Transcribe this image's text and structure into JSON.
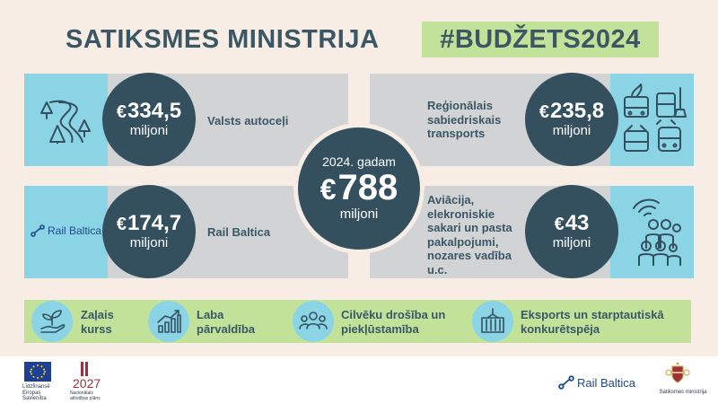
{
  "header": {
    "title": "SATIKSMES MINISTRIJA",
    "hashtag": "#BUDŽETS2024"
  },
  "total": {
    "year_label": "2024. gadam",
    "currency": "€",
    "amount": "788",
    "unit": "miljoni"
  },
  "items": [
    {
      "currency": "€",
      "amount": "334,5",
      "unit": "miljoni",
      "label": "Valsts autoceļi",
      "icon": "road-trees-icon"
    },
    {
      "currency": "€",
      "amount": "235,8",
      "unit": "miljoni",
      "label": "Reģionālais sabiedriskais transports",
      "icon": "public-transport-icon"
    },
    {
      "currency": "€",
      "amount": "174,7",
      "unit": "miljoni",
      "label": "Rail Baltica",
      "icon": "rail-baltica-logo",
      "logo_text": "Rail Baltica"
    },
    {
      "currency": "€",
      "amount": "43",
      "unit": "miljoni",
      "label": "Aviācija, elekroniskie sakari un pasta pakalpojumi, nozares vadība u.c.",
      "icon": "people-wifi-icon"
    }
  ],
  "priorities": [
    {
      "label": "Zaļais kurss",
      "icon": "sprout-hand-icon"
    },
    {
      "label": "Laba pārvaldība",
      "icon": "growth-chart-icon"
    },
    {
      "label": "Cilvēku drošība un piekļūstamība",
      "icon": "people-group-icon"
    },
    {
      "label": "Eksports un starptautiskā konkurētspēja",
      "icon": "cargo-container-icon"
    }
  ],
  "footer": {
    "eu_text": "Līdzfinansē Eiropas Savienība",
    "plan_year": "2027",
    "plan_text": "Nacionālais attīstības plāns",
    "rail_baltica": "Rail Baltica",
    "ministry": "Satiksmes ministrija"
  },
  "colors": {
    "dark": "#34505f",
    "blue": "#8bd4e6",
    "gray": "#d1d3d4",
    "green": "#c2e29a",
    "background": "#f7ede4"
  }
}
